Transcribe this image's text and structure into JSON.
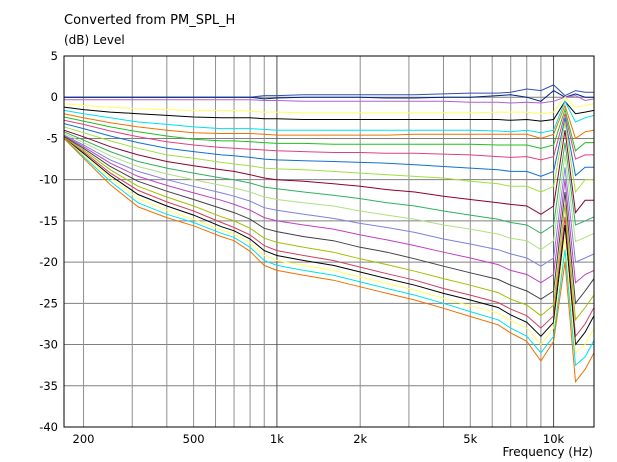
{
  "chart_data": {
    "type": "line",
    "title": "Converted from PM_SPL_H",
    "ylabel": "(dB)  Level",
    "xlabel": "Frequency  (Hz)",
    "xscale": "log",
    "xlim": [
      170,
      14000
    ],
    "ylim": [
      -40,
      5
    ],
    "grid": true,
    "yticks": [
      5,
      0,
      -5,
      -10,
      -15,
      -20,
      -25,
      -30,
      -35,
      -40
    ],
    "xtick_labels": [
      {
        "value": 200,
        "label": "200"
      },
      {
        "value": 500,
        "label": "500"
      },
      {
        "value": 1000,
        "label": "1k"
      },
      {
        "value": 2000,
        "label": "2k"
      },
      {
        "value": 5000,
        "label": "5k"
      },
      {
        "value": 10000,
        "label": "10k"
      }
    ],
    "x": [
      170,
      200,
      250,
      315,
      400,
      500,
      630,
      700,
      800,
      900,
      1000,
      1250,
      1600,
      2000,
      2500,
      3150,
      4000,
      5000,
      6300,
      7000,
      8000,
      9000,
      10000,
      11000,
      12000,
      13000,
      14000
    ],
    "series": [
      {
        "color": "#3050b0",
        "values": [
          0,
          0,
          0,
          0,
          0,
          0,
          0,
          0,
          0,
          0.2,
          0.2,
          0.3,
          0.3,
          0.3,
          0.3,
          0.3,
          0.4,
          0.5,
          0.5,
          0.6,
          1.0,
          0.8,
          1.5,
          0.2,
          0.8,
          0.6,
          0.6
        ]
      },
      {
        "color": "#002080",
        "values": [
          0,
          0,
          0,
          0,
          0,
          0,
          0,
          0,
          0,
          -0.2,
          -0.1,
          0,
          0,
          0,
          -0.1,
          -0.1,
          0,
          0,
          0.2,
          0.3,
          0,
          -0.5,
          0.8,
          0,
          0.4,
          0,
          0
        ]
      },
      {
        "color": "#b060d0",
        "values": [
          -0.3,
          -0.3,
          -0.3,
          -0.3,
          -0.3,
          -0.3,
          -0.3,
          -0.3,
          -0.3,
          -0.4,
          -0.4,
          -0.5,
          -0.5,
          -0.5,
          -0.5,
          -0.5,
          -0.5,
          -0.6,
          -0.6,
          -0.7,
          -0.6,
          -0.7,
          -0.5,
          0,
          0.2,
          -0.4,
          -0.2
        ]
      },
      {
        "color": "#ffff60",
        "values": [
          -0.8,
          -1.0,
          -1.2,
          -1.4,
          -1.5,
          -1.6,
          -1.6,
          -1.6,
          -1.7,
          -1.8,
          -1.8,
          -1.9,
          -1.9,
          -1.9,
          -1.9,
          -1.9,
          -1.9,
          -1.9,
          -1.8,
          -1.8,
          -1.8,
          -2.0,
          -1.8,
          0,
          -1.2,
          -1.0,
          -0.8
        ]
      },
      {
        "color": "#000000",
        "values": [
          -1.2,
          -1.5,
          -1.8,
          -2.0,
          -2.2,
          -2.4,
          -2.5,
          -2.5,
          -2.5,
          -2.6,
          -2.6,
          -2.7,
          -2.7,
          -2.7,
          -2.7,
          -2.7,
          -2.7,
          -2.7,
          -2.7,
          -2.8,
          -2.7,
          -2.9,
          -2.7,
          -0.5,
          -2.0,
          -1.8,
          -1.6
        ]
      },
      {
        "color": "#00e0f0",
        "values": [
          -1.6,
          -2.0,
          -2.5,
          -3.0,
          -3.3,
          -3.6,
          -3.8,
          -3.8,
          -3.8,
          -3.9,
          -4.0,
          -4.0,
          -4.0,
          -4.0,
          -4.0,
          -4.0,
          -4.0,
          -4.0,
          -4.1,
          -4.2,
          -4.0,
          -4.3,
          -4.0,
          -0.5,
          -3.0,
          -2.5,
          -2.2
        ]
      },
      {
        "color": "#f07000",
        "values": [
          -2.0,
          -2.5,
          -3.1,
          -3.6,
          -4.0,
          -4.3,
          -4.4,
          -4.4,
          -4.4,
          -4.5,
          -4.6,
          -4.6,
          -4.6,
          -4.6,
          -4.6,
          -4.5,
          -4.5,
          -4.5,
          -4.5,
          -4.5,
          -4.5,
          -5.0,
          -4.5,
          -1.0,
          -5.0,
          -4.2,
          -4.0
        ]
      },
      {
        "color": "#20c020",
        "values": [
          -2.4,
          -2.9,
          -3.6,
          -4.2,
          -4.7,
          -5.1,
          -5.3,
          -5.3,
          -5.4,
          -5.5,
          -5.6,
          -5.6,
          -5.7,
          -5.7,
          -5.7,
          -5.7,
          -5.7,
          -5.7,
          -5.8,
          -5.8,
          -5.8,
          -6.2,
          -5.8,
          -1.5,
          -6.5,
          -5.5,
          -5.5
        ]
      },
      {
        "color": "#e04080",
        "values": [
          -2.8,
          -3.3,
          -4.1,
          -4.8,
          -5.4,
          -5.8,
          -6.1,
          -6.2,
          -6.3,
          -6.4,
          -6.5,
          -6.6,
          -6.7,
          -6.7,
          -6.8,
          -6.8,
          -6.9,
          -7.0,
          -7.2,
          -7.3,
          -7.2,
          -7.6,
          -7.2,
          -2.0,
          -7.5,
          -7.0,
          -7.0
        ]
      },
      {
        "color": "#1070d0",
        "values": [
          -3.2,
          -3.8,
          -4.7,
          -5.5,
          -6.2,
          -6.6,
          -7.0,
          -7.1,
          -7.3,
          -7.5,
          -7.6,
          -7.7,
          -7.8,
          -7.9,
          -8.0,
          -8.2,
          -8.4,
          -8.6,
          -8.8,
          -9.0,
          -9.0,
          -9.6,
          -9.0,
          -2.5,
          -9.5,
          -8.5,
          -8.5
        ]
      },
      {
        "color": "#a0e040",
        "values": [
          -3.6,
          -4.3,
          -5.3,
          -6.2,
          -7.0,
          -7.4,
          -7.9,
          -8.1,
          -8.3,
          -8.6,
          -8.7,
          -8.8,
          -9.0,
          -9.2,
          -9.4,
          -9.6,
          -9.8,
          -10.2,
          -10.5,
          -10.8,
          -10.8,
          -11.5,
          -10.8,
          -3.0,
          -11.5,
          -10.0,
          -10.0
        ]
      },
      {
        "color": "#8b0030",
        "values": [
          -4.0,
          -4.8,
          -6.0,
          -7.0,
          -7.8,
          -8.3,
          -8.8,
          -9.0,
          -9.4,
          -9.8,
          -10.0,
          -10.2,
          -10.5,
          -10.8,
          -11.2,
          -11.5,
          -12.0,
          -12.4,
          -12.8,
          -13.0,
          -13.2,
          -14.2,
          -13.2,
          -4.0,
          -14.0,
          -12.5,
          -12.5
        ]
      },
      {
        "color": "#30b060",
        "values": [
          -4.2,
          -5.2,
          -6.6,
          -7.8,
          -8.6,
          -9.2,
          -9.8,
          -10.0,
          -10.4,
          -10.9,
          -11.1,
          -11.5,
          -11.9,
          -12.3,
          -12.8,
          -13.2,
          -13.8,
          -14.3,
          -14.8,
          -15.2,
          -15.5,
          -16.5,
          -15.5,
          -5.5,
          -15.5,
          -15.0,
          -14.5
        ]
      },
      {
        "color": "#b0e080",
        "values": [
          -4.4,
          -5.5,
          -7.1,
          -8.4,
          -9.3,
          -10.0,
          -10.7,
          -11.0,
          -11.5,
          -12.1,
          -12.4,
          -12.8,
          -13.2,
          -13.8,
          -14.3,
          -14.8,
          -15.5,
          -16.0,
          -16.6,
          -17.1,
          -17.4,
          -18.5,
          -17.4,
          -7.0,
          -17.5,
          -17.0,
          -16.5
        ]
      },
      {
        "color": "#8080e0",
        "values": [
          -4.6,
          -5.8,
          -7.6,
          -9.0,
          -10.0,
          -10.8,
          -11.6,
          -12.0,
          -12.6,
          -13.4,
          -13.7,
          -14.2,
          -14.7,
          -15.3,
          -15.8,
          -16.4,
          -17.2,
          -17.8,
          -18.5,
          -19.0,
          -19.5,
          -20.5,
          -19.5,
          -8.5,
          -20.0,
          -19.5,
          -19.0
        ]
      },
      {
        "color": "#c040c0",
        "values": [
          -4.7,
          -6.0,
          -8.0,
          -9.6,
          -10.7,
          -11.6,
          -12.5,
          -13.0,
          -13.7,
          -14.6,
          -15.0,
          -15.5,
          -16.0,
          -16.7,
          -17.3,
          -18.0,
          -18.8,
          -19.5,
          -20.3,
          -21.0,
          -21.5,
          -22.5,
          -21.5,
          -10.0,
          -22.5,
          -21.5,
          -21.0
        ]
      },
      {
        "color": "#404040",
        "values": [
          -4.8,
          -6.2,
          -8.4,
          -10.2,
          -11.4,
          -12.4,
          -13.5,
          -14.0,
          -14.8,
          -15.9,
          -16.3,
          -16.9,
          -17.4,
          -18.2,
          -18.8,
          -19.6,
          -20.5,
          -21.3,
          -22.1,
          -22.8,
          -23.5,
          -24.5,
          -23.5,
          -11.5,
          -25.0,
          -23.5,
          -22.0
        ]
      },
      {
        "color": "#a0c000",
        "values": [
          -4.9,
          -6.4,
          -8.8,
          -10.8,
          -12.1,
          -13.2,
          -14.5,
          -15.0,
          -15.9,
          -17.1,
          -17.6,
          -18.2,
          -18.8,
          -19.6,
          -20.3,
          -21.1,
          -22.0,
          -22.8,
          -23.7,
          -24.5,
          -25.2,
          -26.5,
          -25.2,
          -13.0,
          -27.0,
          -25.5,
          -24.0
        ]
      },
      {
        "color": "#d04060",
        "values": [
          -5.0,
          -6.6,
          -9.2,
          -11.3,
          -12.7,
          -13.8,
          -15.2,
          -15.8,
          -16.7,
          -18.0,
          -18.6,
          -19.2,
          -19.8,
          -20.6,
          -21.4,
          -22.2,
          -23.2,
          -24.0,
          -24.9,
          -25.7,
          -26.5,
          -28.0,
          -26.5,
          -14.5,
          -29.0,
          -27.5,
          -25.5
        ]
      },
      {
        "color": "#000000",
        "values": [
          -5.0,
          -6.8,
          -9.5,
          -11.8,
          -13.2,
          -14.3,
          -15.7,
          -16.2,
          -17.2,
          -18.6,
          -19.2,
          -19.8,
          -20.4,
          -21.2,
          -22.0,
          -22.8,
          -23.8,
          -24.6,
          -25.5,
          -26.4,
          -27.3,
          -29.0,
          -27.3,
          -15.5,
          -30.0,
          -28.5,
          -26.5
        ]
      },
      {
        "color": "#ffff60",
        "values": [
          -5.0,
          -7.0,
          -9.8,
          -12.3,
          -13.7,
          -14.8,
          -16.1,
          -16.6,
          -17.7,
          -19.2,
          -19.8,
          -20.4,
          -21.0,
          -21.8,
          -22.6,
          -23.4,
          -24.4,
          -25.3,
          -26.2,
          -27.1,
          -28.0,
          -30.0,
          -28.0,
          -17.0,
          -31.0,
          -30.0,
          -28.0
        ]
      },
      {
        "color": "#00e0f0",
        "values": [
          -5.0,
          -7.2,
          -10.2,
          -12.8,
          -14.2,
          -15.2,
          -16.5,
          -17.0,
          -18.2,
          -19.8,
          -20.4,
          -21.0,
          -21.6,
          -22.4,
          -23.2,
          -24.0,
          -25.0,
          -26.0,
          -27.0,
          -28.0,
          -29.0,
          -31.0,
          -29.0,
          -18.5,
          -32.5,
          -31.5,
          -29.5
        ]
      },
      {
        "color": "#f07000",
        "values": [
          -5.0,
          -7.4,
          -10.6,
          -13.3,
          -14.6,
          -15.6,
          -16.9,
          -17.4,
          -18.7,
          -20.4,
          -21.0,
          -21.6,
          -22.2,
          -23.0,
          -23.8,
          -24.6,
          -25.6,
          -26.6,
          -27.6,
          -28.6,
          -29.6,
          -32.0,
          -29.6,
          -20.0,
          -34.5,
          -33.0,
          -31.0
        ]
      }
    ]
  }
}
